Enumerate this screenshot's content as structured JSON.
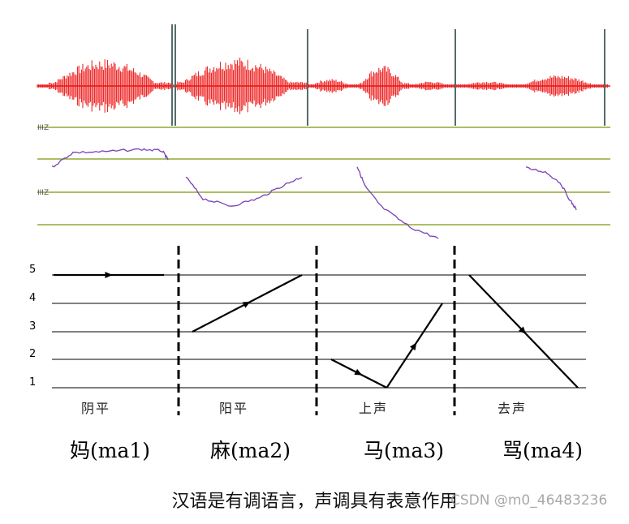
{
  "tone_scale": [
    "5",
    "4",
    "3",
    "2",
    "1"
  ],
  "pitch_ticks": [
    "IIIZ",
    "IIIZ"
  ],
  "tones": [
    {
      "name": "阴平",
      "syllable": "妈(ma1)",
      "contour": [
        5,
        5
      ]
    },
    {
      "name": "阳平",
      "syllable": "麻(ma2)",
      "contour": [
        3,
        5
      ]
    },
    {
      "name": "上声",
      "syllable": "马(ma3)",
      "contour": [
        2,
        1,
        4
      ]
    },
    {
      "name": "去声",
      "syllable": "骂(ma4)",
      "contour": [
        5,
        1
      ]
    }
  ],
  "caption": "汉语是有调语言，声调具有表意作用",
  "watermark": "CSDN @m0_46483236",
  "colors": {
    "waveform": "#ee1111",
    "pitch_curve": "#7a3fb8",
    "pitch_grid": "#8faa35",
    "separator": "#556b6b",
    "line": "#000000"
  }
}
